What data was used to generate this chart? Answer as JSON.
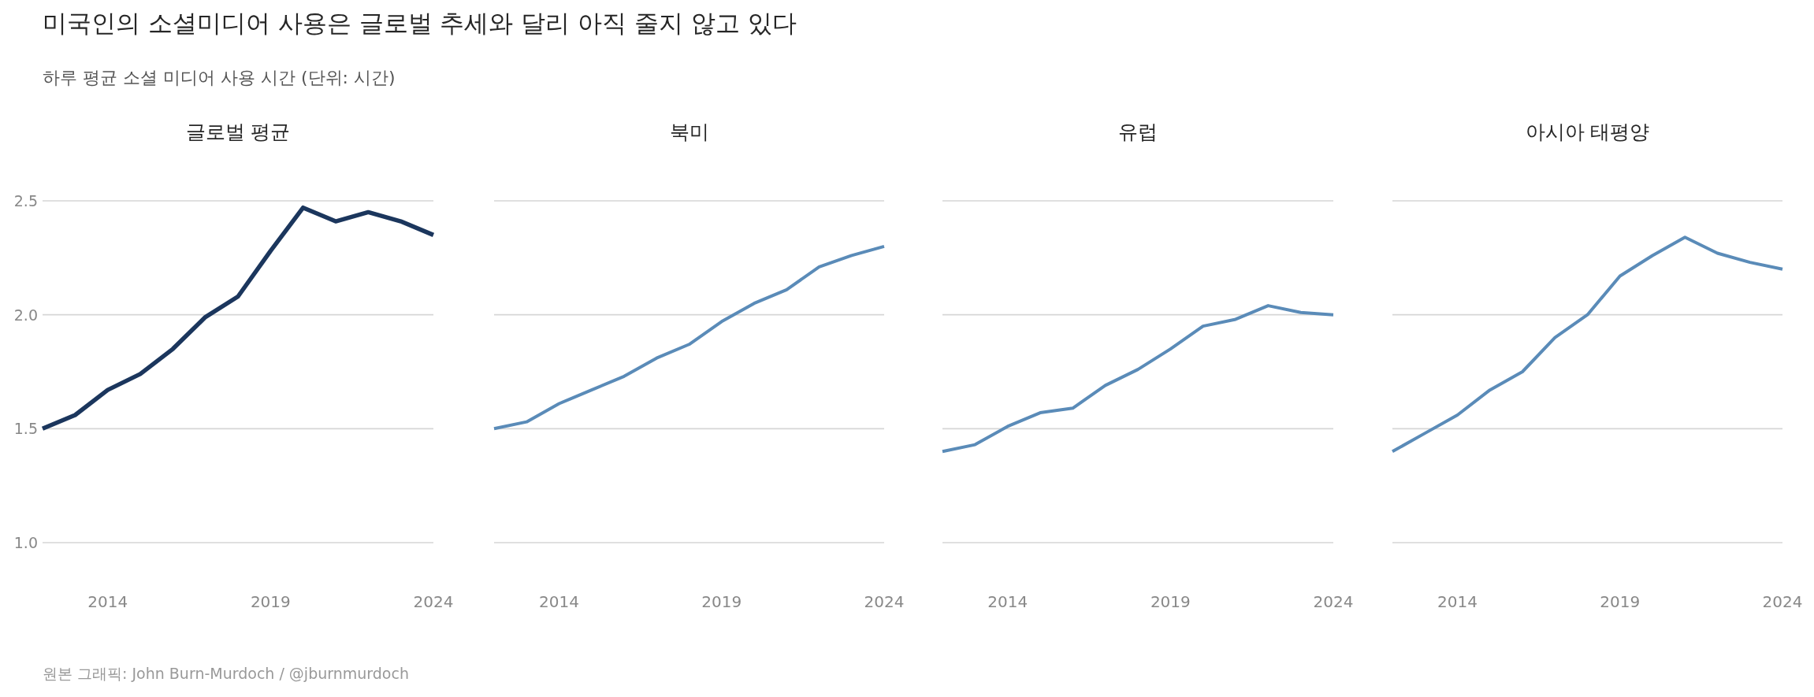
{
  "chart_data": [
    {
      "type": "other",
      "title": "미국인의 소셜미디어 사용은 글로벌 추세와 달리 아직 줄지 않고 있다",
      "subtitle": "하루 평균 소셜 미디어 사용 시간 (단위: 시간)",
      "annotations": [
        "원본 그래픽: John Burn-Murdoch / @jburnmurdoch"
      ]
    },
    {
      "type": "line",
      "title": "글로벌 평균",
      "x": [
        2012,
        2013,
        2014,
        2015,
        2016,
        2017,
        2018,
        2019,
        2020,
        2021,
        2022,
        2023,
        2024
      ],
      "xlim": [
        2012,
        2024
      ],
      "xticks": [
        2014,
        2019,
        2024
      ],
      "ylim": [
        1,
        2.5
      ],
      "yticks": [
        {
          "value": 1,
          "label": "1.0"
        },
        1.5,
        {
          "value": 2,
          "label": "2.0"
        },
        2.5
      ],
      "grid": "y",
      "series": [
        {
          "color": "#1b365d",
          "values": [
            1.5,
            1.56,
            1.67,
            1.74,
            1.85,
            1.99,
            2.08,
            2.28,
            2.47,
            2.41,
            2.45,
            2.41,
            2.35
          ]
        }
      ]
    },
    {
      "type": "line",
      "title": "북미",
      "x": [
        2012,
        2013,
        2014,
        2015,
        2016,
        2017,
        2018,
        2019,
        2020,
        2021,
        2022,
        2023,
        2024
      ],
      "xlim": [
        2012,
        2024
      ],
      "xticks": [
        2014,
        2019,
        2024
      ],
      "ylim": [
        1,
        2.5
      ],
      "yticks": [
        1,
        1.5,
        2,
        2.5
      ],
      "grid": "y",
      "tick_labels": "x",
      "series": [
        {
          "color": "#5a8bb8",
          "values": [
            1.5,
            1.53,
            1.61,
            1.67,
            1.73,
            1.81,
            1.87,
            1.97,
            2.05,
            2.11,
            2.21,
            2.26,
            2.3
          ]
        }
      ]
    },
    {
      "type": "line",
      "title": "유럽",
      "x": [
        2012,
        2013,
        2014,
        2015,
        2016,
        2017,
        2018,
        2019,
        2020,
        2021,
        2022,
        2023,
        2024
      ],
      "xlim": [
        2012,
        2024
      ],
      "xticks": [
        2014,
        2019,
        2024
      ],
      "ylim": [
        1,
        2.5
      ],
      "yticks": [
        1,
        1.5,
        2,
        2.5
      ],
      "grid": "y",
      "tick_labels": "x",
      "series": [
        {
          "color": "#5a8bb8",
          "values": [
            1.4,
            1.43,
            1.51,
            1.57,
            1.59,
            1.69,
            1.76,
            1.85,
            1.95,
            1.98,
            2.04,
            2.01,
            2.0
          ]
        }
      ]
    },
    {
      "type": "line",
      "title": "아시아 태평양",
      "x": [
        2012,
        2013,
        2014,
        2015,
        2016,
        2017,
        2018,
        2019,
        2020,
        2021,
        2022,
        2023,
        2024
      ],
      "xlim": [
        2012,
        2024
      ],
      "xticks": [
        2014,
        2019,
        2024
      ],
      "ylim": [
        1,
        2.5
      ],
      "yticks": [
        1,
        1.5,
        2,
        2.5
      ],
      "grid": "y",
      "tick_labels": "x",
      "series": [
        {
          "color": "#5a8bb8",
          "values": [
            1.4,
            1.48,
            1.56,
            1.67,
            1.75,
            1.9,
            2.0,
            2.17,
            2.26,
            2.34,
            2.27,
            2.23,
            2.2
          ]
        }
      ]
    }
  ]
}
